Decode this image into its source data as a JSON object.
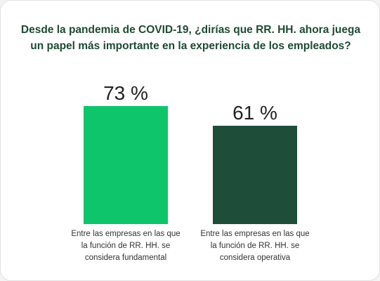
{
  "chart_data": {
    "type": "bar",
    "title": "Desde la pandemia de COVID-19, ¿dirías que RR. HH. ahora juega un papel más importante en la experiencia de los empleados?",
    "categories": [
      "Entre las empresas en las que la función de RR. HH. se considera fundamental",
      "Entre las empresas en las que la función de RR. HH. se considera operativa"
    ],
    "values": [
      73,
      61
    ],
    "value_labels": [
      "73 %",
      "61 %"
    ],
    "bar_colors": [
      "#0fc56b",
      "#1e4d3a"
    ],
    "unit": "%",
    "xlabel": "",
    "ylabel": "",
    "grid": false,
    "legend": "none"
  }
}
